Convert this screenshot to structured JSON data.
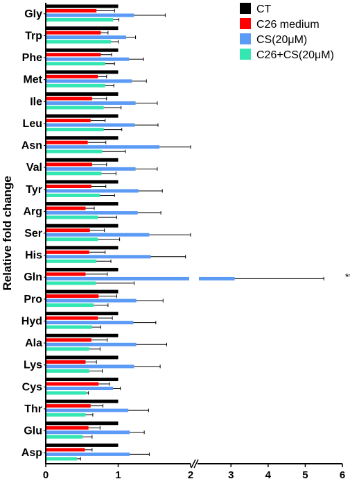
{
  "chart_data": {
    "type": "bar",
    "orientation": "horizontal",
    "ylabel": "Relative fold change",
    "categories": [
      "Gly",
      "Trp",
      "Phe",
      "Met",
      "Ile",
      "Leu",
      "Asn",
      "Val",
      "Tyr",
      "Arg",
      "Ser",
      "His",
      "Gln",
      "Pro",
      "Hyd",
      "Ala",
      "Lys",
      "Cys",
      "Thr",
      "Glu",
      "Asp"
    ],
    "x_axis": {
      "range": [
        0,
        6
      ],
      "break": [
        2,
        2.1
      ],
      "ticks": [
        "0",
        "1",
        "2",
        "3",
        "4",
        "5",
        "6"
      ]
    },
    "legend_position": "top-right",
    "series": [
      {
        "name": "CT",
        "color": "#000000",
        "values": [
          1,
          1,
          1,
          1,
          1,
          1,
          1,
          1,
          1,
          1,
          1,
          1,
          1,
          1,
          1,
          1,
          1,
          1,
          1,
          1,
          1
        ],
        "errors": [
          0,
          0,
          0,
          0,
          0,
          0,
          0,
          0,
          0,
          0,
          0,
          0,
          0,
          0,
          0,
          0,
          0,
          0,
          0,
          0,
          0
        ]
      },
      {
        "name": "C26 medium",
        "color": "#ff0000",
        "values": [
          0.7,
          0.76,
          0.76,
          0.72,
          0.64,
          0.62,
          0.58,
          0.64,
          0.63,
          0.55,
          0.61,
          0.6,
          0.55,
          0.73,
          0.72,
          0.63,
          0.55,
          0.73,
          0.62,
          0.59,
          0.54
        ],
        "errors": [
          0.25,
          0.1,
          0.15,
          0.12,
          0.2,
          0.2,
          0.25,
          0.2,
          0.2,
          0.12,
          0.2,
          0.22,
          0.3,
          0.25,
          0.2,
          0.22,
          0.15,
          0.15,
          0.17,
          0.16,
          0.1
        ]
      },
      {
        "name": "CS(20μM)",
        "color": "#5b9bf5",
        "values": [
          1.22,
          1.11,
          1.15,
          1.19,
          1.24,
          1.23,
          1.57,
          1.24,
          1.28,
          1.27,
          1.43,
          1.45,
          3.1,
          1.25,
          1.21,
          1.25,
          1.22,
          0.93,
          1.14,
          1.16,
          1.16
        ],
        "errors": [
          0.43,
          0.13,
          0.2,
          0.2,
          0.3,
          0.32,
          0.43,
          0.3,
          0.33,
          0.32,
          0.58,
          0.48,
          2.4,
          0.37,
          0.31,
          0.42,
          0.36,
          0.1,
          0.28,
          0.2,
          0.27
        ]
      },
      {
        "name": "C26+CS(20μM)",
        "color": "#33e6b2",
        "values": [
          0.93,
          0.9,
          0.82,
          0.82,
          0.8,
          0.8,
          0.78,
          0.77,
          0.75,
          0.72,
          0.72,
          0.7,
          0.69,
          0.66,
          0.64,
          0.6,
          0.6,
          0.56,
          0.55,
          0.51,
          0.43
        ],
        "errors": [
          0.08,
          0.1,
          0.13,
          0.12,
          0.24,
          0.25,
          0.32,
          0.2,
          0.2,
          0.26,
          0.3,
          0.2,
          0.53,
          0.2,
          0.12,
          0.15,
          0.18,
          0.03,
          0.1,
          0.13,
          0.05
        ]
      }
    ],
    "annotations": [
      {
        "category": "Gln",
        "text": "***"
      }
    ]
  }
}
